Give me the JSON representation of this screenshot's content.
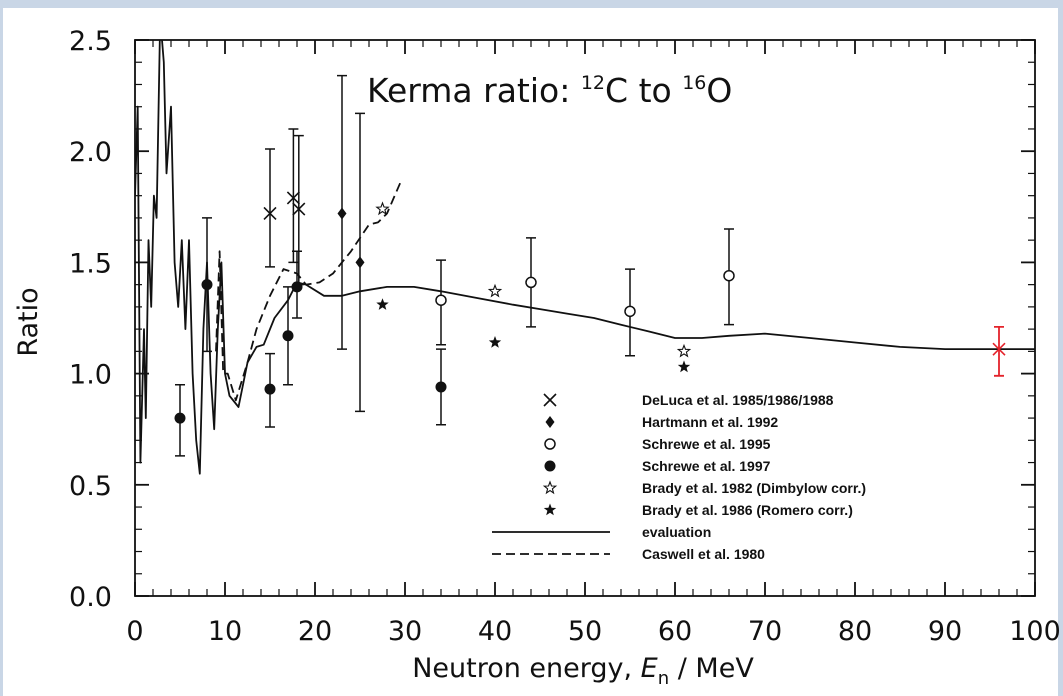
{
  "chart_data": {
    "type": "scatter",
    "title": "Kerma ratio: ¹²C to ¹⁶O",
    "title_parts": {
      "prefix": "Kerma ratio: ",
      "iso1_mass": "12",
      "iso1_sym": "C",
      "mid": " to ",
      "iso2_mass": "16",
      "iso2_sym": "O"
    },
    "xlabel": "Neutron energy, E_n / MeV",
    "xlabel_parts": {
      "prefix": "Neutron energy, ",
      "sym": "E",
      "sub": "n",
      "suffix": " / MeV"
    },
    "ylabel": "Ratio",
    "xlim": [
      0,
      100
    ],
    "ylim": [
      0,
      2.5
    ],
    "xticks": [
      "0",
      "10",
      "20",
      "30",
      "40",
      "50",
      "60",
      "70",
      "80",
      "90",
      "100"
    ],
    "yticks": [
      "0.0",
      "0.5",
      "1.0",
      "1.5",
      "2.0",
      "2.5"
    ],
    "grid": false,
    "legend_position": "lower-right",
    "series": [
      {
        "name": "DeLuca et al. 1985/1986/1988",
        "marker": "cross",
        "points": [
          {
            "x": 15.0,
            "y": 1.72,
            "lo": 1.48,
            "hi": 2.01
          },
          {
            "x": 17.6,
            "y": 1.79,
            "lo": 1.5,
            "hi": 2.1
          },
          {
            "x": 18.2,
            "y": 1.74,
            "lo": 1.4,
            "hi": 2.07
          }
        ]
      },
      {
        "name": "Hartmann et al. 1992",
        "marker": "diamond",
        "points": [
          {
            "x": 23.0,
            "y": 1.72,
            "lo": 1.11,
            "hi": 2.34
          },
          {
            "x": 25.0,
            "y": 1.5,
            "lo": 0.83,
            "hi": 2.17
          }
        ]
      },
      {
        "name": "Schrewe et al. 1995",
        "marker": "open-circle",
        "points": [
          {
            "x": 34.0,
            "y": 1.33,
            "lo": 1.13,
            "hi": 1.51
          },
          {
            "x": 44.0,
            "y": 1.41,
            "lo": 1.21,
            "hi": 1.61
          },
          {
            "x": 55.0,
            "y": 1.28,
            "lo": 1.08,
            "hi": 1.47
          },
          {
            "x": 66.0,
            "y": 1.44,
            "lo": 1.22,
            "hi": 1.65
          }
        ]
      },
      {
        "name": "Schrewe et al. 1997",
        "marker": "filled-circle",
        "points": [
          {
            "x": 5.0,
            "y": 0.8,
            "lo": 0.63,
            "hi": 0.95
          },
          {
            "x": 8.0,
            "y": 1.4,
            "lo": 1.1,
            "hi": 1.7
          },
          {
            "x": 15.0,
            "y": 0.93,
            "lo": 0.76,
            "hi": 1.09
          },
          {
            "x": 17.0,
            "y": 1.17,
            "lo": 0.95,
            "hi": 1.39
          },
          {
            "x": 18.0,
            "y": 1.39,
            "lo": 1.25,
            "hi": 1.55
          },
          {
            "x": 34.0,
            "y": 0.94,
            "lo": 0.77,
            "hi": 1.11
          }
        ]
      },
      {
        "name": "Brady et al. 1982 (Dimbylow corr.)",
        "marker": "open-star",
        "points": [
          {
            "x": 27.5,
            "y": 1.74
          },
          {
            "x": 40.0,
            "y": 1.37
          },
          {
            "x": 61.0,
            "y": 1.1
          }
        ]
      },
      {
        "name": "Brady et al. 1986 (Romero corr.)",
        "marker": "filled-star",
        "points": [
          {
            "x": 27.5,
            "y": 1.31
          },
          {
            "x": 40.0,
            "y": 1.14
          },
          {
            "x": 61.0,
            "y": 1.03
          }
        ]
      },
      {
        "name": "evaluation",
        "marker": "line-solid",
        "points": [
          [
            0.0,
            1.8
          ],
          [
            0.3,
            2.2
          ],
          [
            0.6,
            0.6
          ],
          [
            1.0,
            1.2
          ],
          [
            1.2,
            0.8
          ],
          [
            1.5,
            1.6
          ],
          [
            1.8,
            1.3
          ],
          [
            2.1,
            1.8
          ],
          [
            2.4,
            1.7
          ],
          [
            2.8,
            2.6
          ],
          [
            3.2,
            2.4
          ],
          [
            3.5,
            1.9
          ],
          [
            4.0,
            2.2
          ],
          [
            4.4,
            1.5
          ],
          [
            4.8,
            1.3
          ],
          [
            5.2,
            1.6
          ],
          [
            5.6,
            1.2
          ],
          [
            6.0,
            1.6
          ],
          [
            6.4,
            1.0
          ],
          [
            6.8,
            0.7
          ],
          [
            7.2,
            0.55
          ],
          [
            7.6,
            1.2
          ],
          [
            8.0,
            1.5
          ],
          [
            8.4,
            1.0
          ],
          [
            8.8,
            0.75
          ],
          [
            9.2,
            1.2
          ],
          [
            9.6,
            1.5
          ],
          [
            10.0,
            1.0
          ],
          [
            10.5,
            0.9
          ],
          [
            11.5,
            0.85
          ],
          [
            12.5,
            1.05
          ],
          [
            13.5,
            1.12
          ],
          [
            14.3,
            1.13
          ],
          [
            15.5,
            1.25
          ],
          [
            17.0,
            1.33
          ],
          [
            18.0,
            1.41
          ],
          [
            19.0,
            1.4
          ],
          [
            21.0,
            1.35
          ],
          [
            23.0,
            1.35
          ],
          [
            25.0,
            1.37
          ],
          [
            28.0,
            1.39
          ],
          [
            31.0,
            1.39
          ],
          [
            34.0,
            1.37
          ],
          [
            38.0,
            1.34
          ],
          [
            42.0,
            1.31
          ],
          [
            45.0,
            1.29
          ],
          [
            48.0,
            1.27
          ],
          [
            51.0,
            1.25
          ],
          [
            54.0,
            1.22
          ],
          [
            57.0,
            1.19
          ],
          [
            60.0,
            1.16
          ],
          [
            63.0,
            1.16
          ],
          [
            66.0,
            1.17
          ],
          [
            70.0,
            1.18
          ],
          [
            75.0,
            1.16
          ],
          [
            80.0,
            1.14
          ],
          [
            85.0,
            1.12
          ],
          [
            90.0,
            1.11
          ],
          [
            95.0,
            1.11
          ],
          [
            100.0,
            1.11
          ]
        ]
      },
      {
        "name": "Caswell et al. 1980",
        "marker": "line-dashed",
        "points": [
          [
            9.0,
            1.1
          ],
          [
            9.4,
            1.55
          ],
          [
            9.8,
            1.0
          ],
          [
            10.3,
            1.0
          ],
          [
            11.2,
            0.88
          ],
          [
            12.5,
            1.05
          ],
          [
            13.5,
            1.2
          ],
          [
            15.0,
            1.35
          ],
          [
            16.5,
            1.47
          ],
          [
            18.0,
            1.45
          ],
          [
            19.0,
            1.4
          ],
          [
            20.5,
            1.41
          ],
          [
            22.0,
            1.45
          ],
          [
            24.0,
            1.55
          ],
          [
            26.0,
            1.67
          ],
          [
            27.0,
            1.68
          ],
          [
            28.0,
            1.72
          ],
          [
            29.5,
            1.86
          ]
        ]
      }
    ],
    "annotation_point": {
      "x": 96.0,
      "y": 1.11,
      "lo": 0.99,
      "hi": 1.21,
      "color": "#e4232b"
    },
    "colors": {
      "ink": "#111111",
      "frame": "#c9d6e6",
      "highlight": "#e4232b"
    }
  }
}
